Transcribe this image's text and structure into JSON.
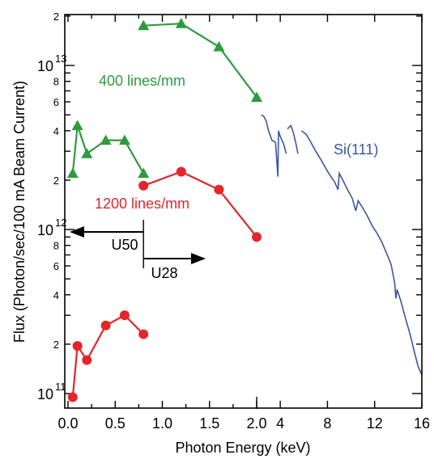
{
  "chart_data": {
    "type": "scatter",
    "title": "",
    "xlabel": "Photon Energy (keV)",
    "ylabel": "Flux (Photon/sec/100 mA Beam Current)",
    "y_scale": "log",
    "ylim": [
      90000000000,
      20000000000000
    ],
    "x_segments": [
      {
        "range": [
          0,
          2.0
        ],
        "ticks": [
          "0.0",
          "0.5",
          "1.0",
          "1.5",
          "2.0"
        ]
      },
      {
        "range": [
          2.0,
          16
        ],
        "ticks": [
          "4",
          "8",
          "12",
          "16"
        ]
      }
    ],
    "y_major_ticks": [
      {
        "value": 100000000000,
        "base": "10",
        "exp": "11"
      },
      {
        "value": 1000000000000,
        "base": "10",
        "exp": "12"
      },
      {
        "value": 10000000000000,
        "base": "10",
        "exp": "13"
      }
    ],
    "y_minor_labels": [
      "2",
      "4",
      "6",
      "8"
    ],
    "colors": {
      "green": "#2e9b3e",
      "red": "#e3262b",
      "blue": "#3b55a5"
    },
    "series": [
      {
        "name": "400 lines/mm",
        "marker": "triangle",
        "color": "#2e9b3e",
        "segments": [
          [
            [
              0.05,
              2200000000000.0
            ],
            [
              0.1,
              4300000000000.0
            ],
            [
              0.2,
              2900000000000.0
            ],
            [
              0.4,
              3500000000000.0
            ],
            [
              0.6,
              3500000000000.0
            ],
            [
              0.8,
              2200000000000.0
            ]
          ],
          [
            [
              0.8,
              17500000000000.0
            ],
            [
              1.2,
              18000000000000.0
            ],
            [
              1.6,
              13000000000000.0
            ],
            [
              2.0,
              6400000000000.0
            ]
          ]
        ]
      },
      {
        "name": "1200 lines/mm",
        "marker": "circle",
        "color": "#e3262b",
        "segments": [
          [
            [
              0.05,
              95000000000.0
            ],
            [
              0.1,
              195000000000.0
            ],
            [
              0.2,
              160000000000.0
            ],
            [
              0.4,
              260000000000.0
            ],
            [
              0.6,
              300000000000.0
            ],
            [
              0.8,
              230000000000.0
            ]
          ],
          [
            [
              0.8,
              1850000000000.0
            ],
            [
              1.2,
              2250000000000.0
            ],
            [
              1.6,
              1750000000000.0
            ],
            [
              2.0,
              900000000000.0
            ]
          ]
        ]
      },
      {
        "name": "Si(111)",
        "marker": "none",
        "color": "#3b55a5",
        "segments": [
          [
            [
              2.4,
              5000000000000.0
            ],
            [
              2.6,
              4900000000000.0
            ],
            [
              2.8,
              4600000000000.0
            ],
            [
              3.0,
              4000000000000.0
            ],
            [
              3.3,
              3500000000000.0
            ],
            [
              3.6,
              3400000000000.0
            ],
            [
              3.8,
              2100000000000.0
            ],
            [
              3.85,
              4000000000000.0
            ],
            [
              4.0,
              3700000000000.0
            ],
            [
              4.3,
              3300000000000.0
            ],
            [
              4.5,
              2900000000000.0
            ]
          ],
          [
            [
              4.6,
              4100000000000.0
            ],
            [
              4.9,
              4300000000000.0
            ],
            [
              5.1,
              3900000000000.0
            ],
            [
              5.3,
              3400000000000.0
            ],
            [
              5.5,
              2900000000000.0
            ]
          ],
          [
            [
              5.8,
              4000000000000.0
            ],
            [
              6.2,
              3800000000000.0
            ],
            [
              6.6,
              3400000000000.0
            ],
            [
              7.0,
              3000000000000.0
            ],
            [
              7.4,
              2700000000000.0
            ],
            [
              7.8,
              2400000000000.0
            ],
            [
              8.2,
              2150000000000.0
            ],
            [
              8.6,
              1950000000000.0
            ],
            [
              8.9,
              1750000000000.0
            ],
            [
              9.0,
              2200000000000.0
            ],
            [
              9.3,
              2000000000000.0
            ],
            [
              9.7,
              1750000000000.0
            ],
            [
              10.1,
              1550000000000.0
            ],
            [
              10.4,
              1300000000000.0
            ],
            [
              10.6,
              1500000000000.0
            ],
            [
              11.0,
              1350000000000.0
            ],
            [
              11.4,
              1200000000000.0
            ],
            [
              11.8,
              1050000000000.0
            ],
            [
              12.2,
              950000000000.0
            ],
            [
              12.6,
              840000000000.0
            ],
            [
              13.0,
              720000000000.0
            ],
            [
              13.4,
              610000000000.0
            ],
            [
              13.7,
              470000000000.0
            ],
            [
              13.8,
              380000000000.0
            ],
            [
              13.9,
              430000000000.0
            ],
            [
              14.2,
              370000000000.0
            ],
            [
              14.6,
              290000000000.0
            ],
            [
              15.0,
              230000000000.0
            ],
            [
              15.4,
              175000000000.0
            ],
            [
              15.7,
              145000000000.0
            ],
            [
              16.0,
              130000000000.0
            ]
          ]
        ]
      }
    ],
    "annotations": {
      "green_label": "400 lines/mm",
      "red_label": "1200 lines/mm",
      "blue_label": "Si(111)",
      "u50": "U50",
      "u28": "U28"
    }
  }
}
